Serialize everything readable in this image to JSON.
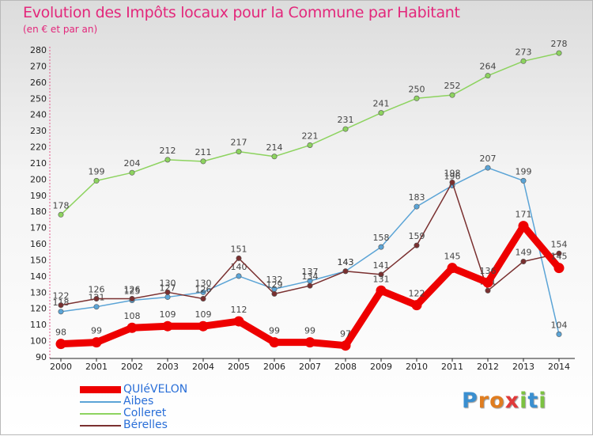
{
  "chart_data": {
    "type": "line",
    "title": "Evolution des Impôts locaux pour la Commune par Habitant",
    "subtitle": "(en € et par an)",
    "categories": [
      "2000",
      "2001",
      "2002",
      "2003",
      "2004",
      "2005",
      "2006",
      "2007",
      "2008",
      "2009",
      "2010",
      "2011",
      "2012",
      "2013",
      "2014"
    ],
    "ylim": [
      90,
      280
    ],
    "yticks": [
      90,
      100,
      110,
      120,
      130,
      140,
      150,
      160,
      170,
      180,
      190,
      200,
      210,
      220,
      230,
      240,
      250,
      260,
      270,
      280
    ],
    "grid": false,
    "series": [
      {
        "name": "QUIéVELON",
        "color": "#ee0000",
        "values": [
          98,
          99,
          108,
          109,
          109,
          112,
          99,
          99,
          97,
          131,
          122,
          145,
          136,
          171,
          145
        ]
      },
      {
        "name": "Aibes",
        "color": "#5ba4d6",
        "values": [
          118,
          121,
          125,
          127,
          130,
          140,
          132,
          137,
          143,
          158,
          183,
          196,
          207,
          199,
          104
        ]
      },
      {
        "name": "Colleret",
        "color": "#8dd35f",
        "values": [
          178,
          199,
          204,
          212,
          211,
          217,
          214,
          221,
          231,
          241,
          250,
          252,
          264,
          273,
          278
        ]
      },
      {
        "name": "Bérelles",
        "color": "#7a3030",
        "values": [
          122,
          126,
          126,
          130,
          126,
          151,
          129,
          134,
          143,
          141,
          159,
          198,
          131,
          149,
          154
        ]
      }
    ]
  },
  "brand": {
    "letters": [
      {
        "ch": "P",
        "color": "#3a8fd0"
      },
      {
        "ch": "r",
        "color": "#e07d20"
      },
      {
        "ch": "o",
        "color": "#e07d20"
      },
      {
        "ch": "x",
        "color": "#e03a3a"
      },
      {
        "ch": "i",
        "color": "#7cc242"
      },
      {
        "ch": "t",
        "color": "#3a8fd0"
      },
      {
        "ch": "i",
        "color": "#7cc242"
      }
    ]
  }
}
